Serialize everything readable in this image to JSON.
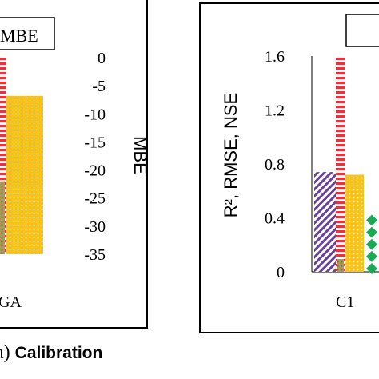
{
  "left_panel": {
    "legend_label": "MBE",
    "axis_label": "MBE",
    "category_label": "GA",
    "caption_prefix": "a)",
    "caption_bold": "Calibration"
  },
  "right_panel": {
    "axis_label": "R², RMSE, NSE",
    "category_label": "C1"
  },
  "colors": {
    "purple": "#6a3fa0",
    "red": "#e8333a",
    "yellow": "#f7c21a",
    "green": "#1aaa55",
    "olive": "#8a7a40"
  },
  "chart_data": [
    {
      "type": "bar",
      "name": "left",
      "ylabel": "MBE",
      "ylim": [
        -35,
        0
      ],
      "yticks": [
        "0",
        "-5",
        "-10",
        "-15",
        "-20",
        "-25",
        "-30",
        "-35"
      ],
      "categories": [
        "GA"
      ],
      "bars": [
        {
          "pattern": "red-stripes",
          "value": -35
        },
        {
          "pattern": "yellow-dots",
          "value": -35
        },
        {
          "pattern": "olive",
          "value": -35
        }
      ],
      "visible_bar_tops": {
        "yellow": -6.8,
        "red": 0,
        "olive": -22
      }
    },
    {
      "type": "bar",
      "name": "right",
      "ylabel": "R², RMSE, NSE",
      "ylim": [
        0,
        1.6
      ],
      "yticks": [
        "0",
        "0.4",
        "0.8",
        "1.2",
        "1.6"
      ],
      "categories": [
        "C1"
      ],
      "bars": [
        {
          "pattern": "purple-diagonal",
          "value": 0.74
        },
        {
          "pattern": "red-stripes",
          "value": 1.6
        },
        {
          "pattern": "yellow-dots",
          "value": 0.72
        },
        {
          "pattern": "green-diamonds",
          "value": 0.43
        }
      ]
    }
  ]
}
